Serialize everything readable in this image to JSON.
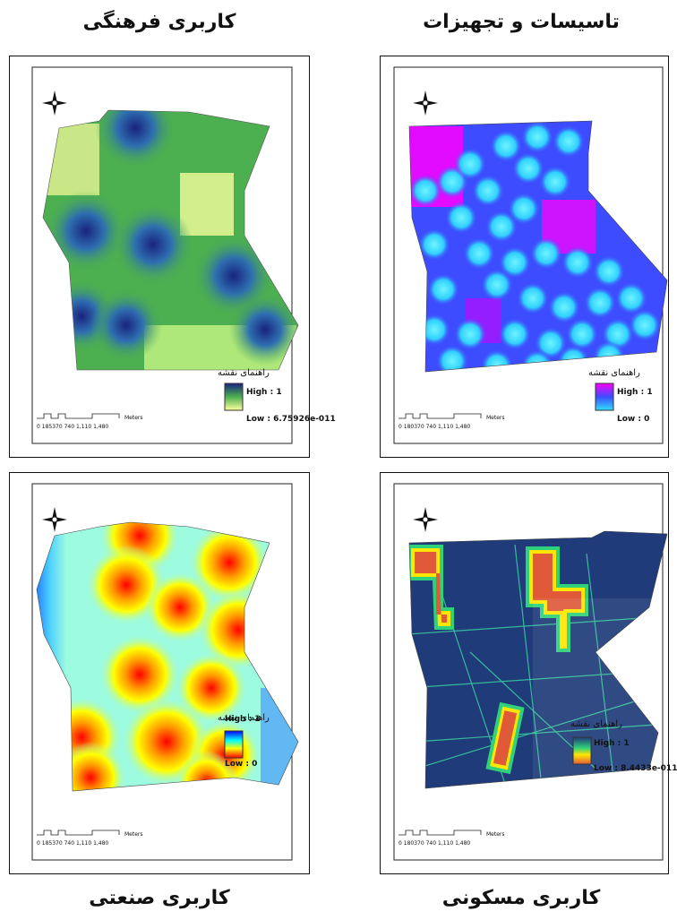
{
  "titles": {
    "top_left": "کاربری فرهنگی",
    "top_right": "تاسیسات و تجهیزات",
    "bottom_left": "کاربری صنعتی",
    "bottom_right": "کاربری مسکونی"
  },
  "maps": {
    "culture": {
      "legend_title": "راهنمای نقشه",
      "high": "High : 1",
      "low": "Low : 6.75926e-011",
      "colors": {
        "high": "#1a237e",
        "mid": "#4caf50",
        "low": "#ffff9c"
      }
    },
    "facilities": {
      "legend_title": "راهنمای نقشه",
      "high": "High : 1",
      "low": "Low : 0",
      "colors": {
        "high": "#ff00ff",
        "mid": "#3d4cff",
        "low": "#30e0ff"
      }
    },
    "industrial": {
      "legend_title": "راهنمای نقشه",
      "high": "High : 1",
      "low": "Low : 0",
      "colors": {
        "high": "#0000ff",
        "mid": "#ffff00",
        "low": "#ff0000"
      }
    },
    "residential": {
      "legend_title": "راهنمای نقشه",
      "high": "High : 1",
      "low": "Low : 8.4433e-011",
      "colors": {
        "high": "#1f3b7a",
        "mid": "#ffe600",
        "low": "#e05a3a"
      }
    }
  },
  "scalebar": {
    "units": "Meters",
    "ticks_a": [
      "0",
      "185",
      "370",
      "740",
      "1,110",
      "1,480"
    ],
    "ticks_b": [
      "0",
      "180",
      "370",
      "740",
      "1,110",
      "1,480"
    ]
  },
  "icons": {
    "north_arrow": "north-arrow-icon"
  }
}
